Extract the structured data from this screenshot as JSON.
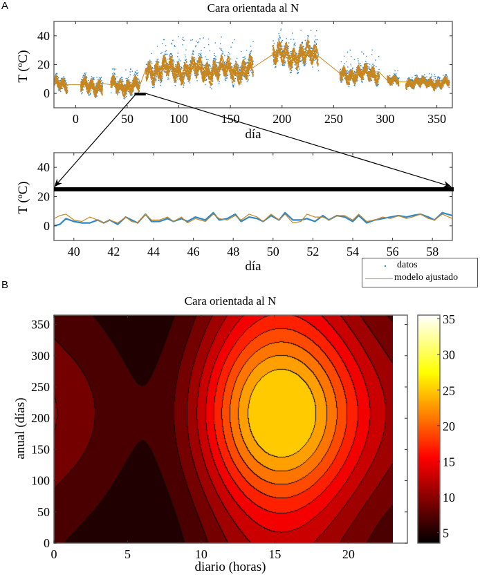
{
  "figure": {
    "panel_a_letter": "A",
    "panel_b_letter": "B"
  },
  "chart_data": [
    {
      "id": "a_top",
      "type": "scatter",
      "title": "Cara orientada al N",
      "xlabel": "día",
      "ylabel": "T (ºC)",
      "xlim": [
        -21,
        365
      ],
      "ylim": [
        -10,
        50
      ],
      "xticks": [
        0,
        50,
        100,
        150,
        200,
        250,
        300,
        350
      ],
      "yticks": [
        0,
        20,
        40
      ],
      "grid": false,
      "series": [
        {
          "name": "datos",
          "style": "points",
          "color": "#2e86c8"
        },
        {
          "name": "modelo ajustado",
          "style": "line",
          "color": "#c8861e"
        }
      ],
      "data_segments": [
        {
          "x": [
            -21,
            -8
          ],
          "mean": 7,
          "spread": 4,
          "peak": 12
        },
        {
          "x": [
            5,
            26
          ],
          "mean": 6,
          "spread": 5,
          "peak": 12
        },
        {
          "x": [
            34,
            62
          ],
          "mean": 6,
          "spread": 5,
          "peak": 18
        },
        {
          "x": [
            68,
            172
          ],
          "mean": 17,
          "spread": 7,
          "peak": 40
        },
        {
          "x": [
            191,
            235
          ],
          "mean": 27,
          "spread": 7,
          "peak": 45
        },
        {
          "x": [
            256,
            294
          ],
          "mean": 14,
          "spread": 5,
          "peak": 31
        },
        {
          "x": [
            302,
            313
          ],
          "mean": 9,
          "spread": 3,
          "peak": 17
        },
        {
          "x": [
            320,
            362
          ],
          "mean": 8,
          "spread": 3,
          "peak": 14
        }
      ],
      "zoom_marker": {
        "x": [
          57,
          68
        ],
        "y": 0
      }
    },
    {
      "id": "a_bottom",
      "type": "line",
      "xlabel": "día",
      "ylabel": "T (ºC)",
      "xlim": [
        39,
        59
      ],
      "ylim": [
        -10,
        50
      ],
      "xticks": [
        40,
        42,
        44,
        46,
        48,
        50,
        52,
        54,
        56,
        58
      ],
      "yticks": [
        0,
        20,
        40
      ],
      "grid": false,
      "highlight_bar_y": 25,
      "series": [
        {
          "name": "datos",
          "color": "#2e86c8",
          "x": [
            39.0,
            39.3,
            39.6,
            40.0,
            40.4,
            40.8,
            41.2,
            41.5,
            41.8,
            42.2,
            42.6,
            42.9,
            43.2,
            43.6,
            43.9,
            44.3,
            44.7,
            45.0,
            45.4,
            45.7,
            46.1,
            46.6,
            47.0,
            47.3,
            47.7,
            48.1,
            48.4,
            48.8,
            49.2,
            49.5,
            49.9,
            50.3,
            50.6,
            51.0,
            51.4,
            51.7,
            52.1,
            52.5,
            52.8,
            53.2,
            53.6,
            54.0,
            54.3,
            54.7,
            55.1,
            55.5,
            55.9,
            56.3,
            56.7,
            57.0,
            57.4,
            57.8,
            58.1,
            58.5,
            59.0
          ],
          "y": [
            0,
            1,
            5,
            3,
            2,
            2,
            4,
            2,
            4,
            1,
            6,
            4,
            2,
            8,
            3,
            3,
            5,
            3,
            5,
            3,
            6,
            4,
            9,
            4,
            5,
            8,
            3,
            6,
            5,
            3,
            7,
            4,
            9,
            4,
            4,
            5,
            3,
            7,
            4,
            7,
            6,
            3,
            7,
            2,
            4,
            5,
            6,
            7,
            6,
            7,
            8,
            6,
            4,
            9,
            7
          ]
        },
        {
          "name": "modelo ajustado",
          "color": "#c8861e",
          "x": [
            39.0,
            39.3,
            39.6,
            40.0,
            40.4,
            40.8,
            41.2,
            41.5,
            41.8,
            42.2,
            42.6,
            42.9,
            43.2,
            43.6,
            43.9,
            44.3,
            44.7,
            45.0,
            45.4,
            45.7,
            46.1,
            46.6,
            47.0,
            47.3,
            47.7,
            48.1,
            48.4,
            48.8,
            49.2,
            49.5,
            49.9,
            50.3,
            50.6,
            51.0,
            51.4,
            51.7,
            52.1,
            52.5,
            52.8,
            53.2,
            53.6,
            54.0,
            54.3,
            54.7,
            55.1,
            55.5,
            55.9,
            56.3,
            56.7,
            57.0,
            57.4,
            57.8,
            58.1,
            58.5,
            59.0
          ],
          "y": [
            5,
            7,
            8,
            4,
            3,
            6,
            4,
            2,
            4,
            2,
            6,
            3,
            2,
            8,
            4,
            4,
            6,
            3,
            6,
            2,
            5,
            3,
            8,
            5,
            4,
            7,
            4,
            8,
            6,
            3,
            8,
            4,
            8,
            2,
            3,
            8,
            6,
            6,
            4,
            7,
            7,
            4,
            8,
            3,
            4,
            6,
            5,
            7,
            5,
            6,
            8,
            5,
            4,
            8,
            5
          ]
        }
      ]
    },
    {
      "id": "b",
      "type": "heatmap",
      "subtype": "filled-contour",
      "title": "Cara orientada al N",
      "xlabel": "diario (horas)",
      "ylabel": "anual (días)",
      "xlim": [
        0,
        24
      ],
      "ylim": [
        0,
        365
      ],
      "data_xlim": [
        0,
        23
      ],
      "xticks": [
        0,
        5,
        10,
        15,
        20
      ],
      "yticks": [
        0,
        50,
        100,
        150,
        200,
        250,
        300,
        350
      ],
      "colorbar": {
        "ticks": [
          5,
          10,
          15,
          20,
          25,
          30,
          35
        ],
        "range": [
          3.5,
          35.5
        ],
        "colormap": "hot"
      },
      "contour_levels": [
        4,
        6,
        8,
        10,
        12,
        14,
        16,
        18,
        20,
        22,
        24
      ],
      "model": {
        "peak": {
          "hour": 16,
          "day": 208,
          "value": 25
        },
        "minimum": {
          "hour": 4,
          "value": 4
        },
        "daily_amplitude_range": [
          3,
          10
        ],
        "seasonal_mean_range": [
          7,
          15
        ]
      }
    }
  ],
  "legend": {
    "items": [
      {
        "label": "datos",
        "marker": "point",
        "color": "#2e86c8"
      },
      {
        "label": "modelo ajustado",
        "marker": "line",
        "color": "#c8861e"
      }
    ],
    "placement": "below-right of panel A"
  }
}
